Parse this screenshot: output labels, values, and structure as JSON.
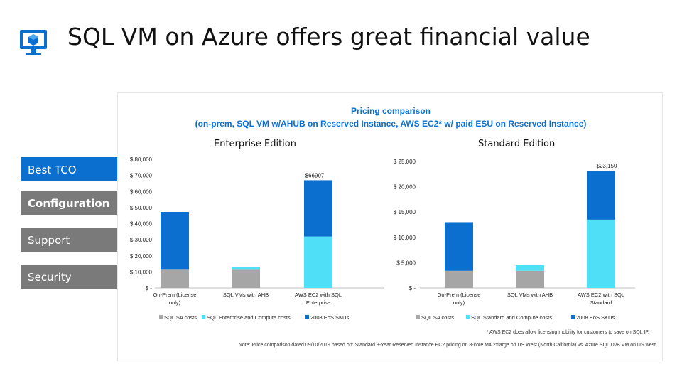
{
  "title": "SQL VM on Azure offers great financial value",
  "nav": [
    {
      "label": "Best TCO",
      "state": "active"
    },
    {
      "label": "Configuration",
      "state": "outline"
    },
    {
      "label": "Support",
      "state": "gray"
    },
    {
      "label": "Security",
      "state": "gray"
    }
  ],
  "panel": {
    "title_line1": "Pricing comparison",
    "title_line2": "(on-prem, SQL VM w/AHUB on Reserved Instance, AWS EC2* w/ paid ESU on Reserved Instance)",
    "footnote1": "* AWS EC2 does allow licensing mobility for customers to save on SQL IP.",
    "footnote2": "Note: Price comparison dated 09/10/2019 based on: Standard 3-Year Reserved Instance EC2 pricing on 8-core M4.2xlarge on US West (North California) vs. Azure SQL DvB VM on US west"
  },
  "colors": {
    "sa": "#a6a6a6",
    "compute": "#4fe0f7",
    "esu": "#0b6fd0",
    "accent": "#0b6fd0"
  },
  "chart_data": [
    {
      "type": "bar",
      "stacked": true,
      "title": "Enterprise Edition",
      "categories": [
        "On-Prem (License only)",
        "SQL VMs with AHB",
        "AWS EC2 with SQL Enterprise"
      ],
      "series": [
        {
          "name": "SQL SA costs",
          "values": [
            11800,
            11800,
            0
          ]
        },
        {
          "name": "SQL Enterprise and Compute costs",
          "values": [
            0,
            1200,
            32000
          ]
        },
        {
          "name": "2008 EoS SKUs",
          "values": [
            35500,
            0,
            34997
          ]
        }
      ],
      "data_labels": [
        "",
        "",
        "$66997"
      ],
      "ylim": [
        0,
        80000
      ],
      "yticks": [
        "$ -",
        "$ 10,000",
        "$ 20,000",
        "$ 30,000",
        "$ 40,000",
        "$ 50,000",
        "$ 60,000",
        "$ 70,000",
        "$ 80,000"
      ],
      "legend_position": "bottom"
    },
    {
      "type": "bar",
      "stacked": true,
      "title": "Standard Edition",
      "categories": [
        "On-Prem (License only)",
        "SQL VMs with AHB",
        "AWS EC2 with SQL Standard"
      ],
      "series": [
        {
          "name": "SQL SA costs",
          "values": [
            3400,
            3400,
            0
          ]
        },
        {
          "name": "SQL Standard and Compute costs",
          "values": [
            0,
            1100,
            13500
          ]
        },
        {
          "name": "2008 EoS SKUs",
          "values": [
            9600,
            0,
            9650
          ]
        }
      ],
      "data_labels": [
        "",
        "",
        "$23,150"
      ],
      "ylim": [
        0,
        25000
      ],
      "yticks": [
        "$ -",
        "$ 5,000",
        "$ 10,000",
        "$ 15,000",
        "$ 20,000",
        "$ 25,000"
      ],
      "legend_position": "bottom"
    }
  ]
}
